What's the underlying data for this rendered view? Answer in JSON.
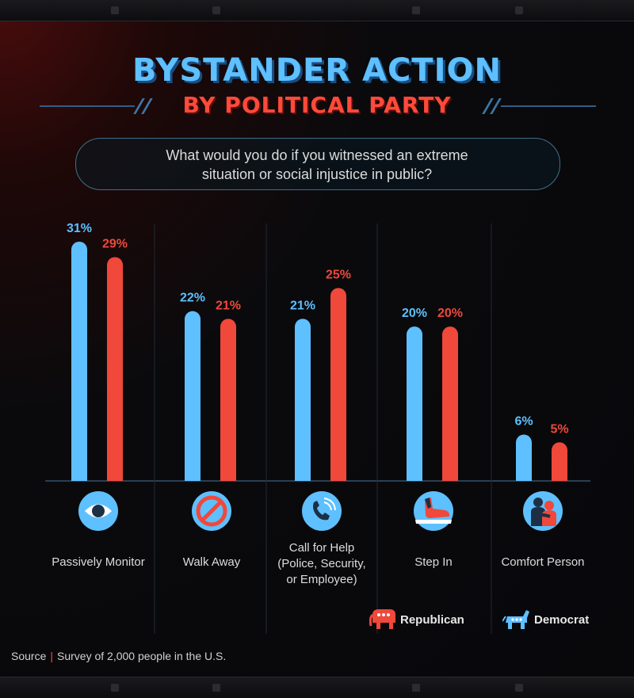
{
  "header": {
    "title": "BYSTANDER ACTION",
    "subtitle": "BY POLITICAL PARTY"
  },
  "question": {
    "line1": "What would you do if you witnessed an extreme",
    "line2": "situation or social injustice in public?"
  },
  "colors": {
    "democrat": "#5ec0ff",
    "republican": "#f0483a"
  },
  "chart_data": {
    "type": "bar",
    "categories": [
      "Passively Monitor",
      "Walk Away",
      "Call for Help (Police, Security, or Employee)",
      "Step In",
      "Comfort Person"
    ],
    "series": [
      {
        "name": "Democrat",
        "values": [
          31,
          22,
          21,
          20,
          6
        ],
        "labels": [
          "31%",
          "22%",
          "21%",
          "20%",
          "6%"
        ]
      },
      {
        "name": "Republican",
        "values": [
          29,
          21,
          25,
          20,
          5
        ],
        "labels": [
          "29%",
          "21%",
          "25%",
          "20%",
          "5%"
        ]
      }
    ],
    "ylim": [
      0,
      31
    ],
    "grid": false,
    "legend": "bottom-right"
  },
  "categories_display": [
    {
      "line1": "Passively Monitor",
      "line2": "",
      "line3": "",
      "icon": "eye-icon"
    },
    {
      "line1": "Walk Away",
      "line2": "",
      "line3": "",
      "icon": "prohibited-icon"
    },
    {
      "line1": "Call for Help",
      "line2": "(Police, Security,",
      "line3": "or Employee)",
      "icon": "phone-icon"
    },
    {
      "line1": "Step In",
      "line2": "",
      "line3": "",
      "icon": "foot-step-icon"
    },
    {
      "line1": "Comfort Person",
      "line2": "",
      "line3": "",
      "icon": "hug-icon"
    }
  ],
  "legend": {
    "republican": "Republican",
    "democrat": "Democrat"
  },
  "source": {
    "label": "Source",
    "text": "Survey of 2,000 people in the U.S."
  }
}
